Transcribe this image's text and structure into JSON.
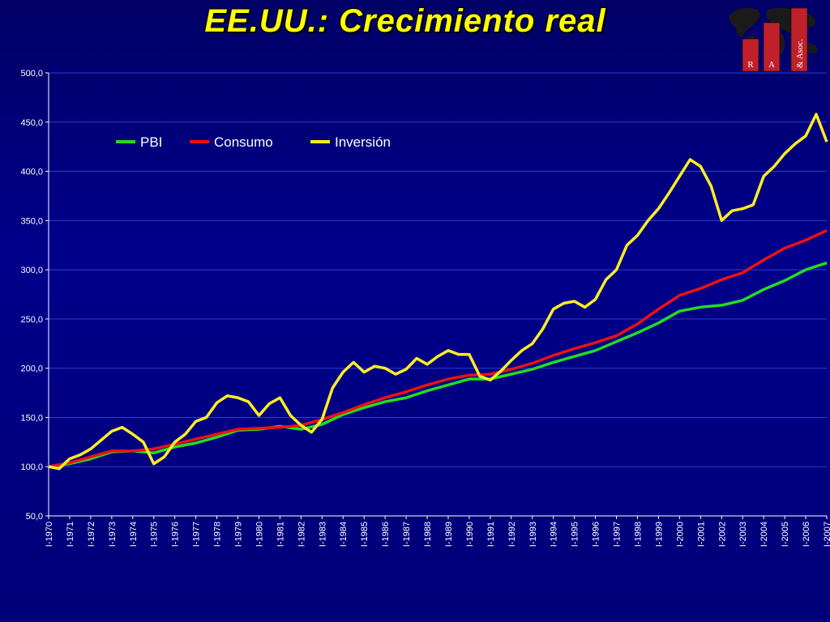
{
  "title": "EE.UU.: Crecimiento real",
  "logo": {
    "letters": [
      "R",
      "A",
      "& Asoc."
    ],
    "bar_color": "#c0202a"
  },
  "chart_data": {
    "type": "line",
    "ylim": [
      50,
      500
    ],
    "yticks": [
      "50,0",
      "100,0",
      "150,0",
      "200,0",
      "250,0",
      "300,0",
      "350,0",
      "400,0",
      "450,0",
      "500,0"
    ],
    "ytick_values": [
      50,
      100,
      150,
      200,
      250,
      300,
      350,
      400,
      450,
      500
    ],
    "xlim": [
      1970.0,
      2007.0
    ],
    "xticks": [
      "I-1970",
      "I-1971",
      "I-1972",
      "I-1973",
      "I-1974",
      "I-1975",
      "I-1976",
      "I-1977",
      "I-1978",
      "I-1979",
      "I-1980",
      "I-1981",
      "I-1982",
      "I-1983",
      "I-1984",
      "I-1985",
      "I-1986",
      "I-1987",
      "I-1988",
      "I-1989",
      "I-1990",
      "I-1991",
      "I-1992",
      "I-1993",
      "I-1994",
      "I-1995",
      "I-1996",
      "I-1997",
      "I-1998",
      "I-1999",
      "I-2000",
      "I-2001",
      "I-2002",
      "I-2003",
      "I-2004",
      "I-2005",
      "I-2006",
      "I-2007"
    ],
    "grid": true,
    "legend_position": "top-left",
    "series": [
      {
        "name": "PBI",
        "color": "#22dd22",
        "x": [
          1970,
          1971,
          1972,
          1973,
          1974,
          1975,
          1976,
          1977,
          1978,
          1979,
          1980,
          1981,
          1982,
          1983,
          1984,
          1985,
          1986,
          1987,
          1988,
          1989,
          1990,
          1991,
          1992,
          1993,
          1994,
          1995,
          1996,
          1997,
          1998,
          1999,
          2000,
          2001,
          2002,
          2003,
          2004,
          2005,
          2006,
          2007
        ],
        "y": [
          100,
          103,
          108,
          115,
          116,
          114,
          120,
          124,
          130,
          137,
          138,
          141,
          138,
          143,
          153,
          160,
          166,
          170,
          177,
          183,
          189,
          189,
          194,
          199,
          206,
          212,
          218,
          227,
          236,
          246,
          258,
          262,
          264,
          269,
          280,
          289,
          300,
          307
        ]
      },
      {
        "name": "Consumo",
        "color": "#ee1111",
        "x": [
          1970,
          1971,
          1972,
          1973,
          1974,
          1975,
          1976,
          1977,
          1978,
          1979,
          1980,
          1981,
          1982,
          1983,
          1984,
          1985,
          1986,
          1987,
          1988,
          1989,
          1990,
          1991,
          1992,
          1993,
          1994,
          1995,
          1996,
          1997,
          1998,
          1999,
          2000,
          2001,
          2002,
          2003,
          2004,
          2005,
          2006,
          2007
        ],
        "y": [
          100,
          104,
          110,
          116,
          116,
          118,
          123,
          128,
          133,
          138,
          139,
          140,
          142,
          148,
          155,
          163,
          170,
          176,
          183,
          189,
          193,
          194,
          199,
          205,
          213,
          220,
          226,
          233,
          245,
          260,
          274,
          281,
          290,
          297,
          310,
          322,
          330,
          340
        ]
      },
      {
        "name": "Inversión",
        "color": "#ffee22",
        "x": [
          1970,
          1970.5,
          1971,
          1971.5,
          1972,
          1972.5,
          1973,
          1973.5,
          1974,
          1974.5,
          1975,
          1975.5,
          1976,
          1976.5,
          1977,
          1977.5,
          1978,
          1978.5,
          1979,
          1979.5,
          1980,
          1980.5,
          1981,
          1981.5,
          1982,
          1982.5,
          1983,
          1983.5,
          1984,
          1984.5,
          1985,
          1985.5,
          1986,
          1986.5,
          1987,
          1987.5,
          1988,
          1988.5,
          1989,
          1989.5,
          1990,
          1990.5,
          1991,
          1991.5,
          1992,
          1992.5,
          1993,
          1993.5,
          1994,
          1994.5,
          1995,
          1995.5,
          1996,
          1996.5,
          1997,
          1997.5,
          1998,
          1998.5,
          1999,
          1999.5,
          2000,
          2000.5,
          2001,
          2001.5,
          2002,
          2002.5,
          2003,
          2003.5,
          2004,
          2004.5,
          2005,
          2005.5,
          2006,
          2006.5,
          2007
        ],
        "y": [
          100,
          98,
          108,
          112,
          118,
          127,
          136,
          140,
          133,
          125,
          103,
          110,
          125,
          133,
          146,
          150,
          165,
          172,
          170,
          166,
          152,
          164,
          170,
          152,
          142,
          135,
          148,
          180,
          196,
          206,
          196,
          202,
          200,
          194,
          199,
          210,
          204,
          212,
          218,
          214,
          214,
          192,
          188,
          197,
          208,
          218,
          225,
          240,
          260,
          266,
          268,
          262,
          270,
          290,
          300,
          325,
          335,
          350,
          362,
          378,
          395,
          412,
          405,
          385,
          350,
          360,
          362,
          366,
          395,
          405,
          418,
          428,
          436,
          458,
          430
        ]
      }
    ]
  }
}
